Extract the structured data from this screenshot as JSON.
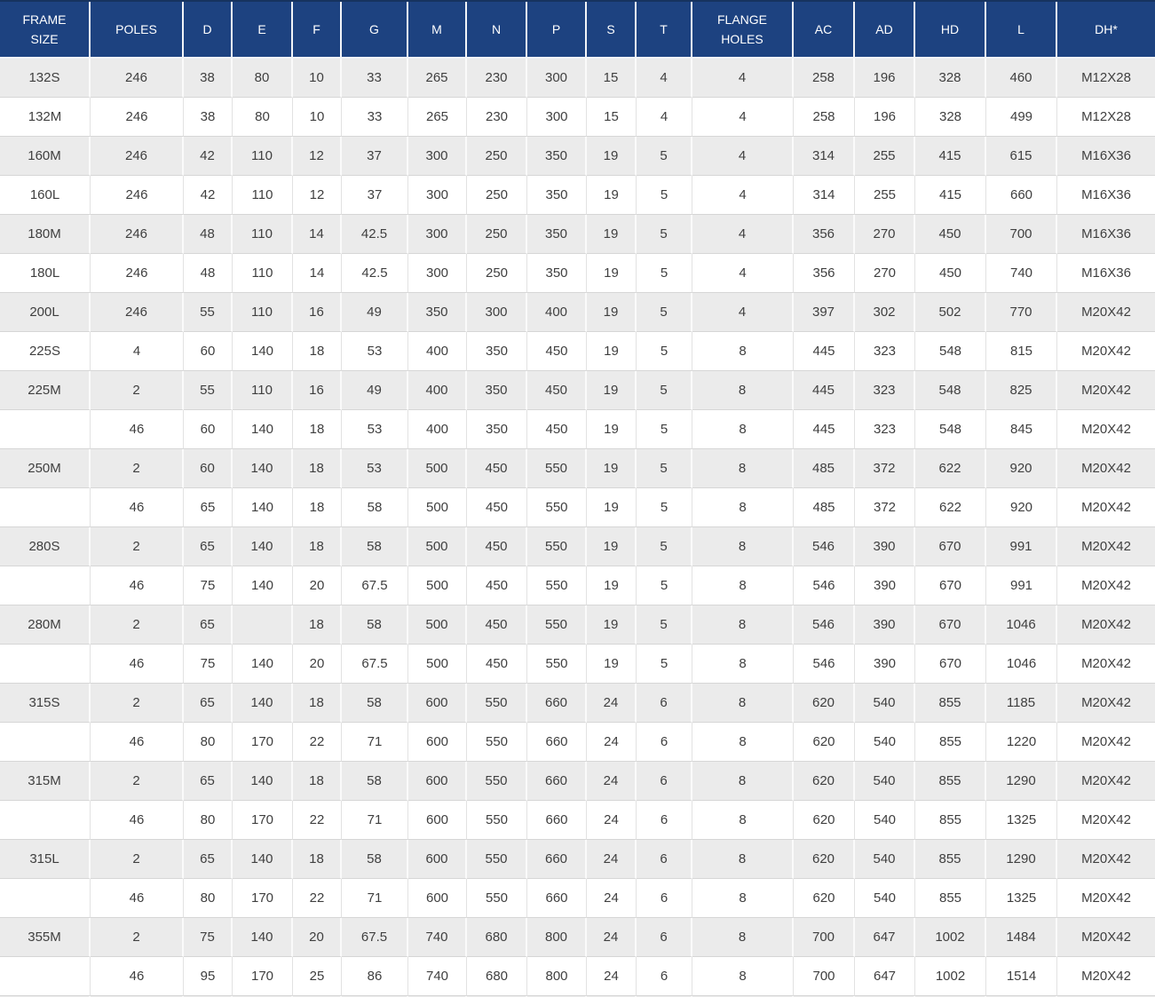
{
  "colors": {
    "header_bg": "#1d4280",
    "header_text": "#ffffff",
    "row_bg": "#ffffff",
    "row_alt_bg": "#ebebeb",
    "cell_text": "#3f3f3f",
    "grid_line": "#d6d6d6"
  },
  "chart_data": {
    "type": "table",
    "title": "",
    "columns": [
      "FRAME\nSIZE",
      "POLES",
      "D",
      "E",
      "F",
      "G",
      "M",
      "N",
      "P",
      "S",
      "T",
      "FLANGE\nHOLES",
      "AC",
      "AD",
      "HD",
      "L",
      "DH*"
    ],
    "rows": [
      [
        "132S",
        "246",
        "38",
        "80",
        "10",
        "33",
        "265",
        "230",
        "300",
        "15",
        "4",
        "4",
        "258",
        "196",
        "328",
        "460",
        "M12X28"
      ],
      [
        "132M",
        "246",
        "38",
        "80",
        "10",
        "33",
        "265",
        "230",
        "300",
        "15",
        "4",
        "4",
        "258",
        "196",
        "328",
        "499",
        "M12X28"
      ],
      [
        "160M",
        "246",
        "42",
        "110",
        "12",
        "37",
        "300",
        "250",
        "350",
        "19",
        "5",
        "4",
        "314",
        "255",
        "415",
        "615",
        "M16X36"
      ],
      [
        "160L",
        "246",
        "42",
        "110",
        "12",
        "37",
        "300",
        "250",
        "350",
        "19",
        "5",
        "4",
        "314",
        "255",
        "415",
        "660",
        "M16X36"
      ],
      [
        "180M",
        "246",
        "48",
        "110",
        "14",
        "42.5",
        "300",
        "250",
        "350",
        "19",
        "5",
        "4",
        "356",
        "270",
        "450",
        "700",
        "M16X36"
      ],
      [
        "180L",
        "246",
        "48",
        "110",
        "14",
        "42.5",
        "300",
        "250",
        "350",
        "19",
        "5",
        "4",
        "356",
        "270",
        "450",
        "740",
        "M16X36"
      ],
      [
        "200L",
        "246",
        "55",
        "110",
        "16",
        "49",
        "350",
        "300",
        "400",
        "19",
        "5",
        "4",
        "397",
        "302",
        "502",
        "770",
        "M20X42"
      ],
      [
        "225S",
        "4",
        "60",
        "140",
        "18",
        "53",
        "400",
        "350",
        "450",
        "19",
        "5",
        "8",
        "445",
        "323",
        "548",
        "815",
        "M20X42"
      ],
      [
        "225M",
        "2",
        "55",
        "110",
        "16",
        "49",
        "400",
        "350",
        "450",
        "19",
        "5",
        "8",
        "445",
        "323",
        "548",
        "825",
        "M20X42"
      ],
      [
        "",
        "46",
        "60",
        "140",
        "18",
        "53",
        "400",
        "350",
        "450",
        "19",
        "5",
        "8",
        "445",
        "323",
        "548",
        "845",
        "M20X42"
      ],
      [
        "250M",
        "2",
        "60",
        "140",
        "18",
        "53",
        "500",
        "450",
        "550",
        "19",
        "5",
        "8",
        "485",
        "372",
        "622",
        "920",
        "M20X42"
      ],
      [
        "",
        "46",
        "65",
        "140",
        "18",
        "58",
        "500",
        "450",
        "550",
        "19",
        "5",
        "8",
        "485",
        "372",
        "622",
        "920",
        "M20X42"
      ],
      [
        "280S",
        "2",
        "65",
        "140",
        "18",
        "58",
        "500",
        "450",
        "550",
        "19",
        "5",
        "8",
        "546",
        "390",
        "670",
        "991",
        "M20X42"
      ],
      [
        "",
        "46",
        "75",
        "140",
        "20",
        "67.5",
        "500",
        "450",
        "550",
        "19",
        "5",
        "8",
        "546",
        "390",
        "670",
        "991",
        "M20X42"
      ],
      [
        "280M",
        "2",
        "65",
        "",
        "18",
        "58",
        "500",
        "450",
        "550",
        "19",
        "5",
        "8",
        "546",
        "390",
        "670",
        "1046",
        "M20X42"
      ],
      [
        "",
        "46",
        "75",
        "140",
        "20",
        "67.5",
        "500",
        "450",
        "550",
        "19",
        "5",
        "8",
        "546",
        "390",
        "670",
        "1046",
        "M20X42"
      ],
      [
        "315S",
        "2",
        "65",
        "140",
        "18",
        "58",
        "600",
        "550",
        "660",
        "24",
        "6",
        "8",
        "620",
        "540",
        "855",
        "1185",
        "M20X42"
      ],
      [
        "",
        "46",
        "80",
        "170",
        "22",
        "71",
        "600",
        "550",
        "660",
        "24",
        "6",
        "8",
        "620",
        "540",
        "855",
        "1220",
        "M20X42"
      ],
      [
        "315M",
        "2",
        "65",
        "140",
        "18",
        "58",
        "600",
        "550",
        "660",
        "24",
        "6",
        "8",
        "620",
        "540",
        "855",
        "1290",
        "M20X42"
      ],
      [
        "",
        "46",
        "80",
        "170",
        "22",
        "71",
        "600",
        "550",
        "660",
        "24",
        "6",
        "8",
        "620",
        "540",
        "855",
        "1325",
        "M20X42"
      ],
      [
        "315L",
        "2",
        "65",
        "140",
        "18",
        "58",
        "600",
        "550",
        "660",
        "24",
        "6",
        "8",
        "620",
        "540",
        "855",
        "1290",
        "M20X42"
      ],
      [
        "",
        "46",
        "80",
        "170",
        "22",
        "71",
        "600",
        "550",
        "660",
        "24",
        "6",
        "8",
        "620",
        "540",
        "855",
        "1325",
        "M20X42"
      ],
      [
        "355M",
        "2",
        "75",
        "140",
        "20",
        "67.5",
        "740",
        "680",
        "800",
        "24",
        "6",
        "8",
        "700",
        "647",
        "1002",
        "1484",
        "M20X42"
      ],
      [
        "",
        "46",
        "95",
        "170",
        "25",
        "86",
        "740",
        "680",
        "800",
        "24",
        "6",
        "8",
        "700",
        "647",
        "1002",
        "1514",
        "M20X42"
      ]
    ]
  }
}
